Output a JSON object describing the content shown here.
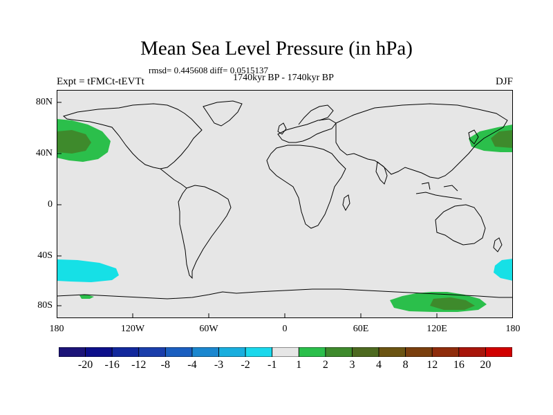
{
  "title": "Mean Sea Level Pressure (in hPa)",
  "stats": "rmsd= 0.445608 diff= 0.0515137",
  "period": "1740kyr BP - 1740kyr BP",
  "experiment": "Expt = tFMCt-tEVTt",
  "season": "DJF",
  "map": {
    "projection": "cylindrical equidistant",
    "lon_range": [
      -180,
      180
    ],
    "lat_range": [
      -90,
      90
    ],
    "land_color": "#e6e6e6",
    "x_ticks": [
      "180",
      "120W",
      "60W",
      "0",
      "60E",
      "120E",
      "180"
    ],
    "y_ticks": [
      "80N",
      "40N",
      "0",
      "40S",
      "80S"
    ],
    "anomaly_regions": [
      {
        "name": "north-pacific-west-positive",
        "level": "2",
        "color": "#2bbf4b"
      },
      {
        "name": "north-pacific-west-core",
        "level": "3",
        "color": "#3e8a2c"
      },
      {
        "name": "north-pacific-east-positive",
        "level": "2",
        "color": "#2bbf4b"
      },
      {
        "name": "north-pacific-east-core",
        "level": "3",
        "color": "#3e8a2c"
      },
      {
        "name": "south-pacific-negative",
        "level": "-1",
        "color": "#16e0e6"
      },
      {
        "name": "south-indian-negative",
        "level": "-1",
        "color": "#16e0e6"
      },
      {
        "name": "antarctica-positive",
        "level": "2",
        "color": "#2bbf4b"
      },
      {
        "name": "antarctica-core",
        "level": "3",
        "color": "#3e8a2c"
      },
      {
        "name": "southern-ocean-small-positive",
        "level": "2",
        "color": "#2bbf4b"
      }
    ]
  },
  "colorbar": {
    "colors": [
      "#1c1478",
      "#0d0f8a",
      "#12289c",
      "#1a3eab",
      "#1b5fc0",
      "#1b87cf",
      "#19aede",
      "#1ad8ec",
      "#e6e6e6",
      "#2bbf4b",
      "#3e8a2c",
      "#4d6a20",
      "#6b5412",
      "#7a3f0e",
      "#8f2c0b",
      "#a8150a",
      "#d10000"
    ],
    "labels": [
      "-20",
      "-16",
      "-12",
      "-8",
      "-4",
      "-3",
      "-2",
      "-1",
      "1",
      "2",
      "3",
      "4",
      "8",
      "12",
      "16",
      "20"
    ]
  }
}
